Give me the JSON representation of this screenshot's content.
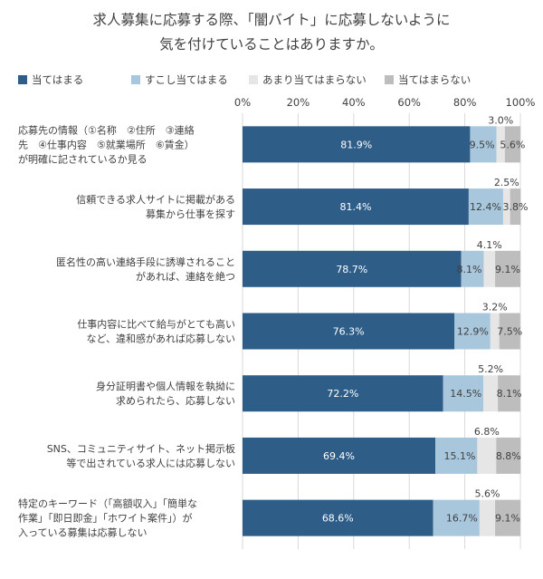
{
  "chart_data": {
    "type": "bar",
    "orientation": "horizontal",
    "stacked": true,
    "title_lines": [
      "求人募集に応募する際、「闇バイト」に応募しないように",
      "気を付けていることはありますか。"
    ],
    "legend_position": "top",
    "xlim": [
      0,
      100
    ],
    "x_ticks": [
      "0%",
      "20%",
      "40%",
      "60%",
      "80%",
      "100%"
    ],
    "grid": true,
    "categories": [
      [
        "応募先の情報（①名称　②住所　③連絡",
        "先　④仕事内容　⑤就業場所　⑥賃金）",
        "が明確に記されているか見る"
      ],
      [
        "信頼できる求人サイトに掲載がある",
        "募集から仕事を探す"
      ],
      [
        "匿名性の高い連絡手段に誘導されること",
        "があれば、連絡を絶つ"
      ],
      [
        "仕事内容に比べて給与がとても高い",
        "など、違和感があれば応募しない"
      ],
      [
        "身分証明書や個人情報を執拗に",
        "求められたら、応募しない"
      ],
      [
        "SNS、コミュニティサイト、ネット掲示板",
        "等で出されている求人には応募しない"
      ],
      [
        "特定のキーワード（「高額収入」「簡単な",
        "作業」「即日即金」「ホワイト案件」）が",
        "入っている募集は応募しない"
      ]
    ],
    "series": [
      {
        "name": "当てはまる",
        "color": "#2e5d87",
        "values": [
          81.9,
          81.4,
          78.7,
          76.3,
          72.2,
          69.4,
          68.6
        ],
        "labels": [
          "81.9%",
          "81.4%",
          "78.7%",
          "76.3%",
          "72.2%",
          "69.4%",
          "68.6%"
        ]
      },
      {
        "name": "すこし当てはまる",
        "color": "#a9c7dc",
        "values": [
          9.5,
          12.4,
          8.1,
          12.9,
          14.5,
          15.1,
          16.7
        ],
        "labels": [
          "9.5%",
          "12.4%",
          "8.1%",
          "12.9%",
          "14.5%",
          "15.1%",
          "16.7%"
        ]
      },
      {
        "name": "あまり当てはまらない",
        "color": "#e6e6e6",
        "values": [
          3.0,
          2.5,
          4.1,
          3.2,
          5.2,
          6.8,
          5.6
        ],
        "labels": [
          "3.0%",
          "2.5%",
          "4.1%",
          "3.2%",
          "5.2%",
          "6.8%",
          "5.6%"
        ]
      },
      {
        "name": "当てはまらない",
        "color": "#bdbdbd",
        "values": [
          5.6,
          3.8,
          9.1,
          7.5,
          8.1,
          8.8,
          9.1
        ],
        "labels": [
          "5.6%",
          "3.8%",
          "9.1%",
          "7.5%",
          "8.1%",
          "8.8%",
          "9.1%"
        ]
      }
    ]
  }
}
